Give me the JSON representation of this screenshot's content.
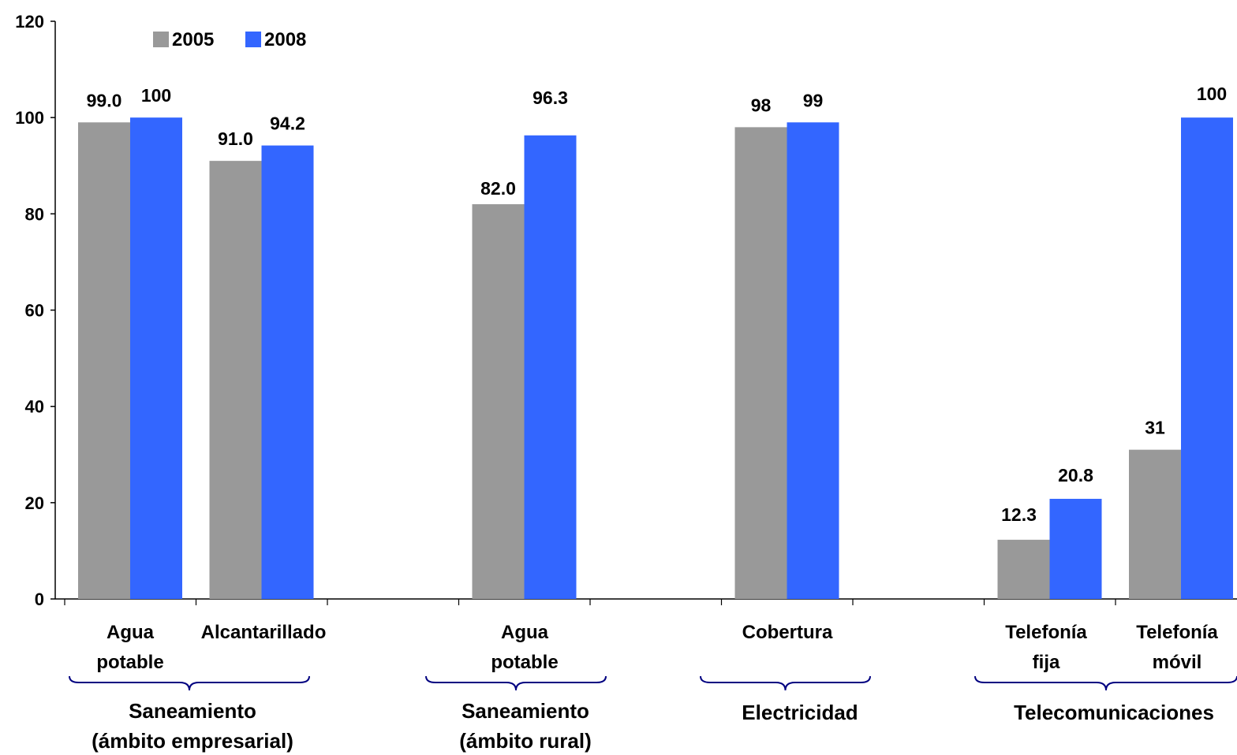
{
  "chart_data": {
    "type": "bar",
    "series": [
      {
        "name": "2005",
        "color": "#999999",
        "values": [
          99.0,
          91.0,
          null,
          82.0,
          null,
          98,
          null,
          12.3,
          31
        ]
      },
      {
        "name": "2008",
        "color": "#3366ff",
        "values": [
          100,
          94.2,
          null,
          96.3,
          null,
          99,
          null,
          20.8,
          100
        ]
      }
    ],
    "data_labels": {
      "2005": [
        "99.0",
        "91.0",
        "",
        "82.0",
        "",
        "98",
        "",
        "12.3",
        "31"
      ],
      "2008": [
        "100",
        "94.2",
        "",
        "96.3",
        "",
        "99",
        "",
        "20.8",
        "100"
      ]
    },
    "categories": [
      [
        "Agua",
        "potable"
      ],
      [
        "Alcantarillado"
      ],
      [],
      [
        "Agua",
        "potable"
      ],
      [],
      [
        "Cobertura"
      ],
      [],
      [
        "Telefonía",
        "fija"
      ],
      [
        "Telefonía",
        "móvil"
      ]
    ],
    "groups": [
      {
        "lines": [
          "Saneamiento",
          "(ámbito empresarial)"
        ],
        "from": 0,
        "to": 1
      },
      {
        "lines": [
          "Saneamiento",
          "(ámbito rural)"
        ],
        "from": 3,
        "to": 3
      },
      {
        "lines": [
          "Electricidad"
        ],
        "from": 5,
        "to": 5
      },
      {
        "lines": [
          "Telecomunicaciones"
        ],
        "from": 7,
        "to": 8
      }
    ],
    "y_ticks": [
      "0",
      "20",
      "40",
      "60",
      "80",
      "100",
      "120"
    ],
    "ylim": [
      0,
      120
    ],
    "grid": false,
    "legend_position": "top-left",
    "brace_color": "#000080"
  }
}
